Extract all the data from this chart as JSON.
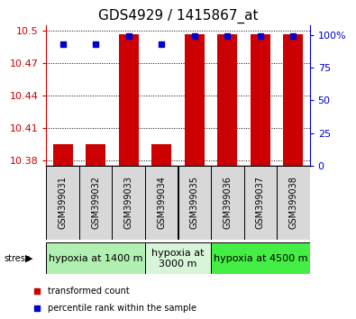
{
  "title": "GDS4929 / 1415867_at",
  "samples": [
    "GSM399031",
    "GSM399032",
    "GSM399033",
    "GSM399034",
    "GSM399035",
    "GSM399036",
    "GSM399037",
    "GSM399038"
  ],
  "red_values": [
    10.395,
    10.395,
    10.497,
    10.395,
    10.497,
    10.497,
    10.497,
    10.497
  ],
  "blue_values": [
    93,
    93,
    99,
    93,
    99,
    99,
    99,
    99
  ],
  "ymin": 10.375,
  "ymax": 10.505,
  "yticks": [
    10.38,
    10.41,
    10.44,
    10.47,
    10.5
  ],
  "ytick_labels": [
    "10.38",
    "10.41",
    "10.44",
    "10.47",
    "10.5"
  ],
  "y2min": 0,
  "y2max": 107,
  "y2ticks": [
    0,
    25,
    50,
    75,
    100
  ],
  "y2tick_labels": [
    "0",
    "25",
    "50",
    "75",
    "100%"
  ],
  "groups": [
    {
      "label": "hypoxia at 1400 m",
      "start": 0,
      "end": 3,
      "color": "#b0f0b0"
    },
    {
      "label": "hypoxia at\n3000 m",
      "start": 3,
      "end": 5,
      "color": "#d8f5d8"
    },
    {
      "label": "hypoxia at 4500 m",
      "start": 5,
      "end": 8,
      "color": "#44ee44"
    }
  ],
  "stress_label": "stress",
  "bar_bottom": 10.375,
  "red_color": "#cc0000",
  "blue_color": "#0000cc",
  "bg_color": "#ffffff",
  "title_fontsize": 11,
  "tick_fontsize": 8,
  "sample_fontsize": 7,
  "group_fontsize": 8
}
